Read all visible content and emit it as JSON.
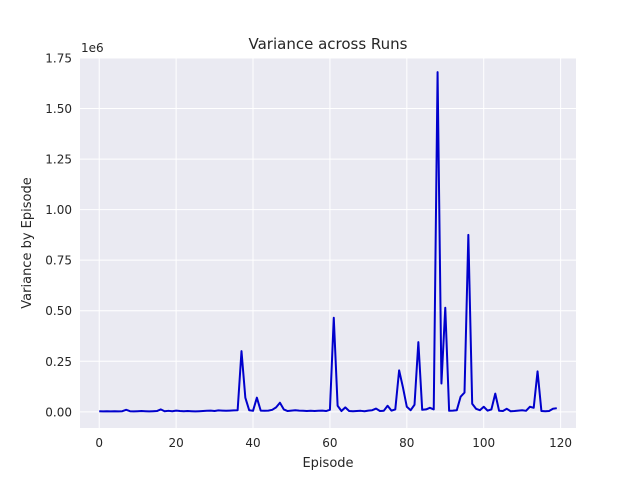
{
  "chart_data": {
    "type": "line",
    "title": "Variance across Runs",
    "xlabel": "Episode",
    "ylabel": "Variance by Episode",
    "y_multiplier_label": "1e6",
    "xlim": [
      -5,
      124
    ],
    "ylim": [
      -0.08,
      1.75
    ],
    "y_scale": 1000000,
    "grid": true,
    "background_color": "#eaeaf2",
    "grid_color": "#ffffff",
    "line_color": "#0000cc",
    "x_ticks": [
      0,
      20,
      40,
      60,
      80,
      100,
      120
    ],
    "y_ticks": [
      0.0,
      0.25,
      0.5,
      0.75,
      1.0,
      1.25,
      1.5,
      1.75
    ],
    "y_tick_labels": [
      "0.00",
      "0.25",
      "0.50",
      "0.75",
      "1.00",
      "1.25",
      "1.50",
      "1.75"
    ],
    "series": [
      {
        "x": [
          0,
          1,
          2,
          3,
          4,
          5,
          6,
          7,
          8,
          9,
          10,
          11,
          12,
          13,
          14,
          15,
          16,
          17,
          18,
          19,
          20,
          21,
          22,
          23,
          24,
          25,
          26,
          27,
          28,
          29,
          30,
          31,
          32,
          33,
          34,
          35,
          36,
          37,
          38,
          39,
          40,
          41,
          42,
          43,
          44,
          45,
          46,
          47,
          48,
          49,
          50,
          51,
          52,
          53,
          54,
          55,
          56,
          57,
          58,
          59,
          60,
          61,
          62,
          63,
          64,
          65,
          66,
          67,
          68,
          69,
          70,
          71,
          72,
          73,
          74,
          75,
          76,
          77,
          78,
          79,
          80,
          81,
          82,
          83,
          84,
          85,
          86,
          87,
          88,
          89,
          90,
          91,
          92,
          93,
          94,
          95,
          96,
          97,
          98,
          99,
          100,
          101,
          102,
          103,
          104,
          105,
          106,
          107,
          108,
          109,
          110,
          111,
          112,
          113,
          114,
          115,
          116,
          117,
          118,
          119
        ],
        "y": [
          0.003,
          0.002,
          0.003,
          0.002,
          0.003,
          0.002,
          0.003,
          0.01,
          0.003,
          0.002,
          0.003,
          0.004,
          0.003,
          0.002,
          0.003,
          0.004,
          0.012,
          0.003,
          0.005,
          0.003,
          0.006,
          0.004,
          0.003,
          0.004,
          0.003,
          0.002,
          0.003,
          0.004,
          0.005,
          0.006,
          0.004,
          0.007,
          0.006,
          0.005,
          0.006,
          0.007,
          0.008,
          0.3,
          0.07,
          0.008,
          0.005,
          0.07,
          0.006,
          0.005,
          0.006,
          0.01,
          0.022,
          0.045,
          0.012,
          0.004,
          0.006,
          0.008,
          0.006,
          0.005,
          0.004,
          0.005,
          0.004,
          0.005,
          0.006,
          0.004,
          0.01,
          0.465,
          0.03,
          0.004,
          0.022,
          0.004,
          0.003,
          0.004,
          0.005,
          0.003,
          0.006,
          0.008,
          0.016,
          0.004,
          0.005,
          0.03,
          0.006,
          0.012,
          0.205,
          0.12,
          0.025,
          0.008,
          0.035,
          0.345,
          0.01,
          0.012,
          0.02,
          0.012,
          1.68,
          0.14,
          0.515,
          0.005,
          0.006,
          0.008,
          0.075,
          0.095,
          0.875,
          0.04,
          0.015,
          0.008,
          0.025,
          0.006,
          0.012,
          0.09,
          0.005,
          0.004,
          0.015,
          0.003,
          0.004,
          0.006,
          0.008,
          0.005,
          0.025,
          0.02,
          0.2,
          0.004,
          0.003,
          0.004,
          0.015,
          0.018
        ]
      }
    ]
  }
}
